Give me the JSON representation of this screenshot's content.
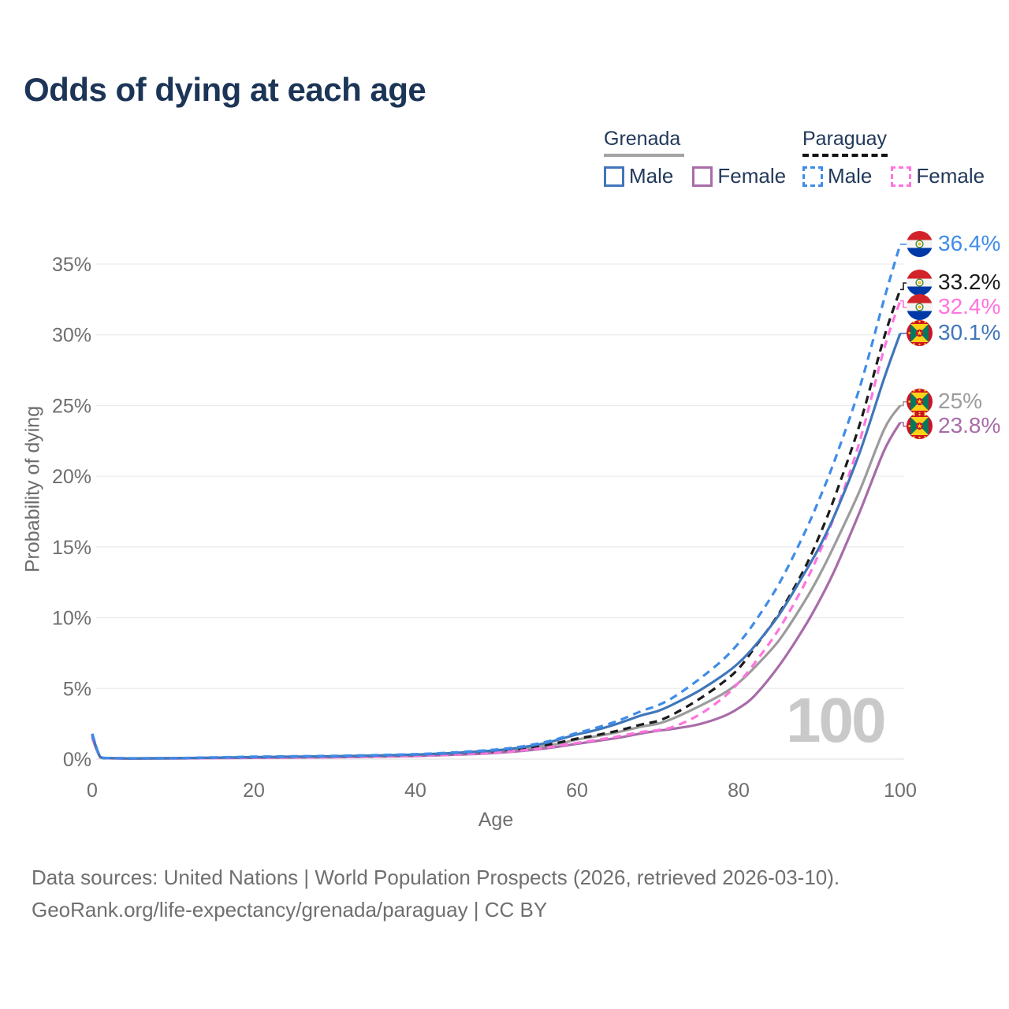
{
  "title": "Odds of dying at each age",
  "legend": {
    "groups": [
      {
        "name": "Grenada",
        "line_style": "solid",
        "underline_color": "#a3a3a3",
        "items": [
          {
            "label": "Male",
            "color": "#4076ba"
          },
          {
            "label": "Female",
            "color": "#a86ca8"
          }
        ]
      },
      {
        "name": "Paraguay",
        "line_style": "dashed",
        "underline_color": "#141414",
        "items": [
          {
            "label": "Male",
            "color": "#3f8ce8"
          },
          {
            "label": "Female",
            "color": "#ff74df"
          }
        ]
      }
    ]
  },
  "watermark_age": "100",
  "footer": {
    "line1": "Data sources: United Nations | World Population Prospects (2026, retrieved 2026-03-10).",
    "line2": "GeoRank.org/life-expectancy/grenada/paraguay | CC BY"
  },
  "chart_data": {
    "type": "line",
    "title": "Odds of dying at each age",
    "xlabel": "Age",
    "ylabel": "Probability of dying",
    "xlim": [
      0,
      100
    ],
    "ylim_pct": [
      0,
      37
    ],
    "grid": "horizontal",
    "legend_position": "top-right",
    "x_ticks": [
      0,
      20,
      40,
      60,
      80,
      100
    ],
    "y_ticks_pct": [
      0,
      5,
      10,
      15,
      20,
      25,
      30,
      35
    ],
    "y_tick_labels": [
      "0%",
      "5%",
      "10%",
      "15%",
      "20%",
      "25%",
      "30%",
      "35%"
    ],
    "ages": [
      0,
      1,
      2,
      5,
      10,
      15,
      20,
      25,
      30,
      35,
      40,
      45,
      50,
      53,
      56,
      58,
      60,
      62,
      65,
      68,
      70,
      72,
      75,
      78,
      80,
      82,
      85,
      88,
      90,
      92,
      95,
      98,
      100
    ],
    "series": [
      {
        "id": "grenada-both",
        "country": "Grenada",
        "group": "Both sexes",
        "color": "#9c9c9c",
        "dash": "solid",
        "flag": "grenada",
        "end_label": "25%",
        "values_pct": [
          1.6,
          0.13,
          0.07,
          0.05,
          0.06,
          0.09,
          0.12,
          0.15,
          0.17,
          0.21,
          0.28,
          0.38,
          0.54,
          0.7,
          0.92,
          1.12,
          1.38,
          1.58,
          1.9,
          2.3,
          2.5,
          2.9,
          3.7,
          4.6,
          5.4,
          6.5,
          8.4,
          11.0,
          13.0,
          15.3,
          19.0,
          23.3,
          25.0
        ]
      },
      {
        "id": "grenada-female",
        "country": "Grenada",
        "group": "Female",
        "color": "#a86ca8",
        "dash": "solid",
        "flag": "grenada",
        "end_label": "23.8%",
        "values_pct": [
          1.5,
          0.12,
          0.06,
          0.04,
          0.05,
          0.07,
          0.09,
          0.11,
          0.13,
          0.17,
          0.22,
          0.31,
          0.44,
          0.57,
          0.75,
          0.91,
          1.08,
          1.25,
          1.5,
          1.82,
          2.0,
          2.15,
          2.45,
          3.0,
          3.6,
          4.5,
          6.6,
          9.2,
          11.2,
          13.5,
          17.5,
          21.8,
          23.8
        ]
      },
      {
        "id": "paraguay-both",
        "country": "Paraguay",
        "group": "Both sexes",
        "color": "#1b1b1b",
        "dash": "dashed",
        "flag": "paraguay",
        "end_label": "33.2%",
        "values_pct": [
          1.75,
          0.14,
          0.07,
          0.05,
          0.06,
          0.1,
          0.14,
          0.17,
          0.2,
          0.24,
          0.31,
          0.42,
          0.58,
          0.75,
          0.98,
          1.2,
          1.45,
          1.65,
          2.0,
          2.45,
          2.7,
          3.2,
          4.2,
          5.4,
          6.4,
          7.9,
          10.3,
          13.3,
          15.8,
          18.7,
          23.7,
          29.8,
          33.2
        ]
      },
      {
        "id": "paraguay-female",
        "country": "Paraguay",
        "group": "Female",
        "color": "#ff74df",
        "dash": "dashed",
        "flag": "paraguay",
        "end_label": "32.4%",
        "values_pct": [
          1.55,
          0.12,
          0.06,
          0.04,
          0.05,
          0.07,
          0.09,
          0.11,
          0.14,
          0.18,
          0.24,
          0.33,
          0.47,
          0.6,
          0.8,
          0.97,
          1.15,
          1.32,
          1.6,
          1.92,
          2.05,
          2.3,
          3.1,
          4.3,
          5.4,
          6.8,
          9.2,
          12.2,
          14.6,
          17.4,
          22.5,
          29.0,
          32.4
        ]
      },
      {
        "id": "grenada-male",
        "country": "Grenada",
        "group": "Male",
        "color": "#4076ba",
        "dash": "solid",
        "flag": "grenada",
        "end_label": "30.1%",
        "values_pct": [
          1.7,
          0.14,
          0.07,
          0.05,
          0.06,
          0.1,
          0.14,
          0.17,
          0.2,
          0.25,
          0.32,
          0.44,
          0.62,
          0.82,
          1.12,
          1.42,
          1.75,
          2.0,
          2.5,
          3.1,
          3.4,
          3.9,
          4.8,
          5.9,
          6.8,
          8.0,
          10.2,
          13.0,
          15.0,
          17.4,
          21.7,
          26.9,
          30.1
        ]
      },
      {
        "id": "paraguay-male",
        "country": "Paraguay",
        "group": "Male",
        "color": "#3f8ce8",
        "dash": "dashed",
        "flag": "paraguay",
        "end_label": "36.4%",
        "values_pct": [
          1.8,
          0.15,
          0.08,
          0.06,
          0.07,
          0.12,
          0.17,
          0.2,
          0.23,
          0.28,
          0.35,
          0.48,
          0.68,
          0.88,
          1.2,
          1.5,
          1.85,
          2.15,
          2.7,
          3.4,
          3.8,
          4.4,
          5.6,
          7.0,
          8.2,
          9.7,
          12.4,
          15.8,
          18.4,
          21.3,
          26.3,
          32.5,
          36.4
        ]
      }
    ]
  }
}
